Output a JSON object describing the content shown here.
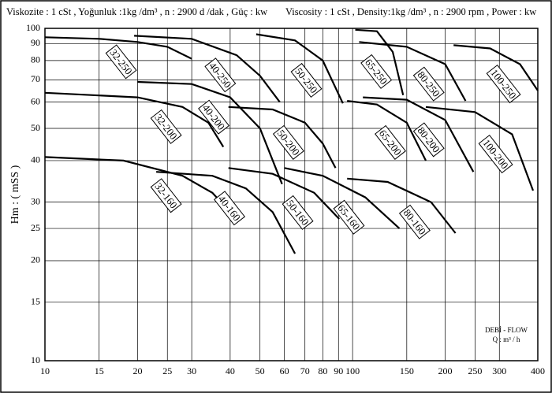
{
  "chart_data": {
    "type": "line",
    "title": "Viskozite : 1 cSt , Yoğunluk :1kg /dm³ , n : 2900 d /dak , Güç : kw",
    "subtitle": "Viscosity : 1 cSt , Density:1kg /dm³ , n : 2900 rpm , Power : kw",
    "y_label": "Hm : ( mSS )",
    "x_label": "DEBİ - FLOW",
    "x_unit": "Q : m³ / h",
    "log_x": true,
    "log_y": true,
    "grid": true,
    "xlim": [
      10,
      400
    ],
    "ylim": [
      10,
      100
    ],
    "xticks": [
      10,
      15,
      20,
      25,
      30,
      40,
      50,
      60,
      70,
      80,
      90,
      100,
      150,
      200,
      250,
      300,
      400
    ],
    "yticks": [
      10,
      15,
      20,
      25,
      30,
      40,
      50,
      60,
      70,
      80,
      90,
      100
    ],
    "series": [
      {
        "name": "32-250",
        "color": "#000000",
        "x": [
          10,
          15,
          20,
          25,
          30
        ],
        "values": [
          94,
          93,
          91,
          88,
          81
        ]
      },
      {
        "name": "40-250",
        "color": "#000000",
        "x": [
          19.5,
          30,
          42,
          50,
          58
        ],
        "values": [
          95,
          93,
          83,
          72,
          60
        ]
      },
      {
        "name": "50-250",
        "color": "#000000",
        "x": [
          48.6,
          65,
          80,
          93
        ],
        "values": [
          96,
          92,
          80,
          59.5
        ]
      },
      {
        "name": "65-250",
        "color": "#000000",
        "x": [
          102,
          120,
          135,
          146
        ],
        "values": [
          99,
          98,
          85,
          63
        ]
      },
      {
        "name": "80-250",
        "color": "#000000",
        "x": [
          105,
          150,
          200,
          233
        ],
        "values": [
          91,
          88,
          78,
          60.5
        ]
      },
      {
        "name": "100-250",
        "color": "#000000",
        "x": [
          213,
          280,
          350,
          400
        ],
        "values": [
          89,
          87,
          78,
          65
        ]
      },
      {
        "name": "32-200",
        "color": "#000000",
        "x": [
          10,
          20,
          28,
          34,
          38
        ],
        "values": [
          64,
          62,
          58,
          52,
          44
        ]
      },
      {
        "name": "40-200",
        "color": "#000000",
        "x": [
          20,
          30,
          40,
          50,
          59
        ],
        "values": [
          69,
          68,
          62,
          50,
          34
        ]
      },
      {
        "name": "50-200",
        "color": "#000000",
        "x": [
          39.5,
          55,
          70,
          80,
          88
        ],
        "values": [
          58,
          57,
          52,
          45,
          38
        ]
      },
      {
        "name": "65-200",
        "color": "#000000",
        "x": [
          96,
          120,
          150,
          173
        ],
        "values": [
          60.5,
          59,
          52,
          40
        ]
      },
      {
        "name": "80-200",
        "color": "#000000",
        "x": [
          108,
          150,
          200,
          247
        ],
        "values": [
          62,
          61,
          53,
          37
        ]
      },
      {
        "name": "100-200",
        "color": "#000000",
        "x": [
          173,
          250,
          330,
          386
        ],
        "values": [
          58,
          56,
          48,
          32.5
        ]
      },
      {
        "name": "32-160",
        "color": "#000000",
        "x": [
          10,
          18,
          28,
          35,
          40
        ],
        "values": [
          41,
          40,
          36,
          32,
          28
        ]
      },
      {
        "name": "40-160",
        "color": "#000000",
        "x": [
          23,
          35,
          45,
          55,
          65
        ],
        "values": [
          37,
          36,
          33,
          28,
          21
        ]
      },
      {
        "name": "50-160",
        "color": "#000000",
        "x": [
          39.5,
          55,
          75,
          90.5
        ],
        "values": [
          38,
          36.5,
          32,
          26.7
        ]
      },
      {
        "name": "65-160",
        "color": "#000000",
        "x": [
          60,
          80,
          110,
          142
        ],
        "values": [
          38,
          36,
          31,
          25
        ]
      },
      {
        "name": "80-160",
        "color": "#000000",
        "x": [
          96,
          130,
          180,
          216
        ],
        "values": [
          35.3,
          34.5,
          30,
          24.2
        ]
      }
    ]
  }
}
